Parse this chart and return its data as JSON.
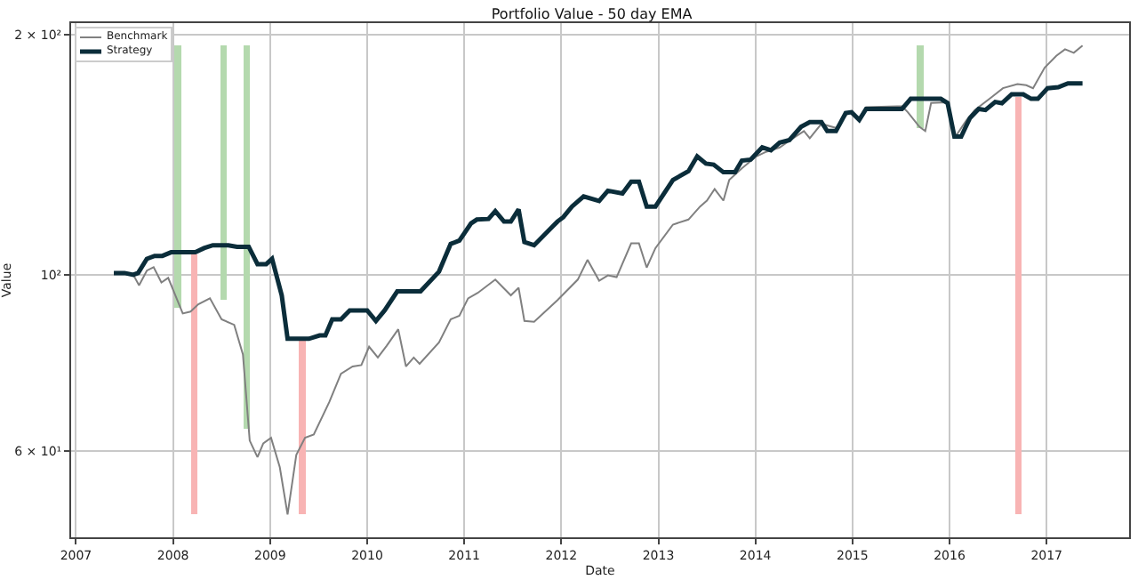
{
  "chart_data": {
    "type": "line",
    "title": "Portfolio Value - 50 day EMA",
    "xlabel": "Date",
    "ylabel": "Value",
    "log": "y",
    "grid": true,
    "legend": "top left",
    "xlim": [
      2006.95,
      2017.85
    ],
    "xticks": [
      2007,
      2008,
      2009,
      2010,
      2011,
      2012,
      2013,
      2014,
      2015,
      2016,
      2017
    ],
    "ylim": [
      46.8,
      207
    ],
    "yticks": [
      {
        "value": 60,
        "label": "6 × 10¹"
      },
      {
        "value": 100,
        "label": "10²"
      },
      {
        "value": 200,
        "label": "2 × 10²"
      }
    ],
    "series": [
      {
        "name": "Benchmark",
        "color": "#808080",
        "x": [
          2007.39,
          2007.59,
          2007.65,
          2007.73,
          2007.8,
          2007.88,
          2007.95,
          2008.1,
          2008.18,
          2008.26,
          2008.38,
          2008.5,
          2008.63,
          2008.72,
          2008.79,
          2008.87,
          2008.93,
          2009.01,
          2009.1,
          2009.18,
          2009.27,
          2009.36,
          2009.45,
          2009.61,
          2009.73,
          2009.85,
          2009.94,
          2010.02,
          2010.11,
          2010.2,
          2010.32,
          2010.4,
          2010.48,
          2010.54,
          2010.74,
          2010.86,
          2010.95,
          2011.04,
          2011.14,
          2011.32,
          2011.48,
          2011.56,
          2011.62,
          2011.72,
          2011.96,
          2012.17,
          2012.27,
          2012.39,
          2012.48,
          2012.57,
          2012.72,
          2012.8,
          2012.88,
          2012.97,
          2013.15,
          2013.31,
          2013.43,
          2013.5,
          2013.58,
          2013.67,
          2013.73,
          2013.86,
          2014.01,
          2014.1,
          2014.25,
          2014.35,
          2014.5,
          2014.56,
          2014.68,
          2014.83,
          2014.96,
          2015.07,
          2015.14,
          2015.46,
          2015.51,
          2015.57,
          2015.69,
          2015.75,
          2015.81,
          2015.97,
          2016.05,
          2016.17,
          2016.26,
          2016.43,
          2016.55,
          2016.7,
          2016.79,
          2016.86,
          2016.98,
          2017.1,
          2017.19,
          2017.28,
          2017.37
        ],
        "values": [
          100.5,
          100,
          97,
          101.2,
          102.2,
          97.8,
          99.1,
          89.4,
          89.9,
          91.8,
          93.4,
          87.9,
          86.5,
          79.4,
          61.9,
          59,
          61.4,
          62.4,
          57.3,
          50,
          59.4,
          62.4,
          63,
          69.2,
          75.1,
          76.7,
          77,
          81.2,
          78.7,
          81.4,
          85.4,
          76.7,
          78.7,
          77.3,
          82.2,
          87.9,
          88.8,
          93.4,
          94.9,
          98.6,
          94.2,
          96.3,
          87.5,
          87.3,
          92.9,
          98.6,
          104.4,
          98.3,
          99.8,
          99.3,
          109.5,
          109.5,
          102.1,
          108,
          115.6,
          117.3,
          121.8,
          123.9,
          128.1,
          123.9,
          131.5,
          136,
          140.8,
          142.5,
          144.5,
          147.3,
          151.5,
          148.4,
          154.7,
          152.9,
          160,
          157.1,
          162.3,
          162.8,
          162.8,
          160,
          153.4,
          151.5,
          164.3,
          164.6,
          148.4,
          156,
          161,
          167,
          171.5,
          173.5,
          173,
          171.5,
          182,
          188.3,
          191.9,
          190,
          194
        ]
      },
      {
        "name": "Strategy",
        "color": "#0b2d3a",
        "x": [
          2007.39,
          2007.5,
          2007.59,
          2007.64,
          2007.73,
          2007.81,
          2007.89,
          2007.98,
          2008.23,
          2008.32,
          2008.41,
          2008.57,
          2008.66,
          2008.78,
          2008.87,
          2008.96,
          2009.02,
          2009.12,
          2009.18,
          2009.4,
          2009.51,
          2009.57,
          2009.64,
          2009.73,
          2009.82,
          2010,
          2010.09,
          2010.18,
          2010.31,
          2010.55,
          2010.74,
          2010.86,
          2010.95,
          2011.07,
          2011.13,
          2011.25,
          2011.32,
          2011.41,
          2011.48,
          2011.56,
          2011.62,
          2011.72,
          2011.96,
          2012.02,
          2012.11,
          2012.23,
          2012.39,
          2012.48,
          2012.63,
          2012.72,
          2012.8,
          2012.88,
          2012.97,
          2013.15,
          2013.31,
          2013.4,
          2013.49,
          2013.57,
          2013.67,
          2013.79,
          2013.86,
          2013.95,
          2014.07,
          2014.16,
          2014.25,
          2014.35,
          2014.47,
          2014.56,
          2014.68,
          2014.74,
          2014.83,
          2014.93,
          2014.99,
          2015.07,
          2015.14,
          2015.51,
          2015.6,
          2015.91,
          2015.98,
          2016.05,
          2016.12,
          2016.21,
          2016.3,
          2016.37,
          2016.47,
          2016.54,
          2016.64,
          2016.76,
          2016.84,
          2016.91,
          2017.01,
          2017.12,
          2017.22,
          2017.37
        ],
        "values": [
          100.5,
          100.5,
          100,
          100.5,
          104.7,
          105.6,
          105.6,
          106.7,
          106.7,
          108,
          108.9,
          108.9,
          108.4,
          108.4,
          103.1,
          103.1,
          104.7,
          94.2,
          83.1,
          83.1,
          83.9,
          83.9,
          87.9,
          87.9,
          90.2,
          90.2,
          87.5,
          90.2,
          95.3,
          95.3,
          100.9,
          109.3,
          110.4,
          116,
          117.3,
          117.5,
          120.2,
          116.6,
          116.6,
          120.8,
          109.9,
          108.9,
          116.6,
          118.1,
          121.8,
          125.4,
          123.8,
          127.5,
          126.5,
          130.9,
          130.9,
          121.8,
          121.8,
          131.5,
          134.9,
          140.8,
          137.9,
          137.5,
          134.5,
          134.5,
          139.1,
          139.5,
          144.5,
          143.3,
          146.5,
          147.6,
          153.4,
          155.5,
          155.5,
          151.5,
          151.5,
          159.6,
          160,
          156.5,
          161.5,
          161.5,
          166.3,
          166.3,
          164.3,
          149.1,
          149.1,
          157.3,
          161.5,
          161,
          164.8,
          164.2,
          168.5,
          168.5,
          166.3,
          166.3,
          171.5,
          172,
          173.9,
          173.9
        ]
      },
      {
        "type": "bar",
        "color": "#b4d9ae",
        "x": [
          2008.05,
          2008.52,
          2008.76,
          2015.7
        ],
        "base": [
          91,
          93,
          64,
          153
        ],
        "values": [
          103,
          101,
          130,
          41
        ]
      },
      {
        "type": "bar",
        "color": "#f8b4b4",
        "x": [
          2008.22,
          2009.33,
          2016.71
        ],
        "base": [
          50,
          50,
          50
        ],
        "values": [
          56,
          33,
          117
        ]
      }
    ]
  }
}
